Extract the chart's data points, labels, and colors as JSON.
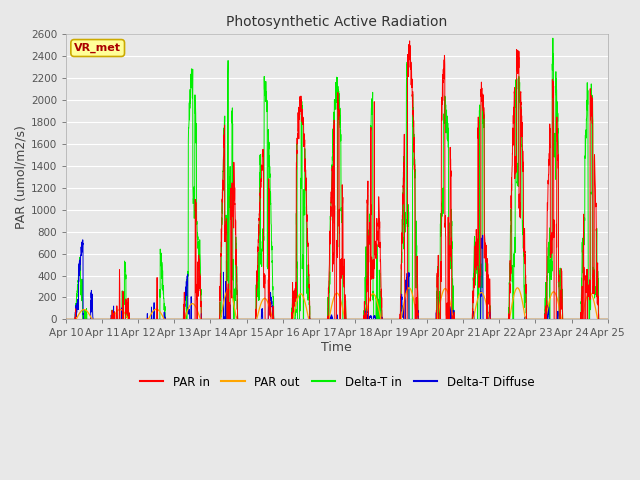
{
  "title": "Photosynthetic Active Radiation",
  "xlabel": "Time",
  "ylabel": "PAR (umol/m2/s)",
  "ylim": [
    0,
    2600
  ],
  "yticks": [
    0,
    200,
    400,
    600,
    800,
    1000,
    1200,
    1400,
    1600,
    1800,
    2000,
    2200,
    2400,
    2600
  ],
  "xtick_labels": [
    "Apr 10",
    "Apr 11",
    "Apr 12",
    "Apr 13",
    "Apr 14",
    "Apr 15",
    "Apr 16",
    "Apr 17",
    "Apr 18",
    "Apr 19",
    "Apr 20",
    "Apr 21",
    "Apr 22",
    "Apr 23",
    "Apr 24",
    "Apr 25"
  ],
  "colors": {
    "PAR_in": "#ff0000",
    "PAR_out": "#ffa500",
    "Delta_T_in": "#00ee00",
    "Delta_T_Diffuse": "#0000dd"
  },
  "legend_labels": [
    "PAR in",
    "PAR out",
    "Delta-T in",
    "Delta-T Diffuse"
  ],
  "annotation_text": "VR_met",
  "annotation_color": "#aa0000",
  "annotation_box_color": "#ffff99",
  "annotation_edge_color": "#ccaa00",
  "background_color": "#e8e8e8",
  "plot_bg_color": "#e8e8e8",
  "grid_color": "#ffffff",
  "n_days": 15,
  "points_per_day": 288,
  "figsize": [
    6.4,
    4.8
  ],
  "dpi": 100
}
